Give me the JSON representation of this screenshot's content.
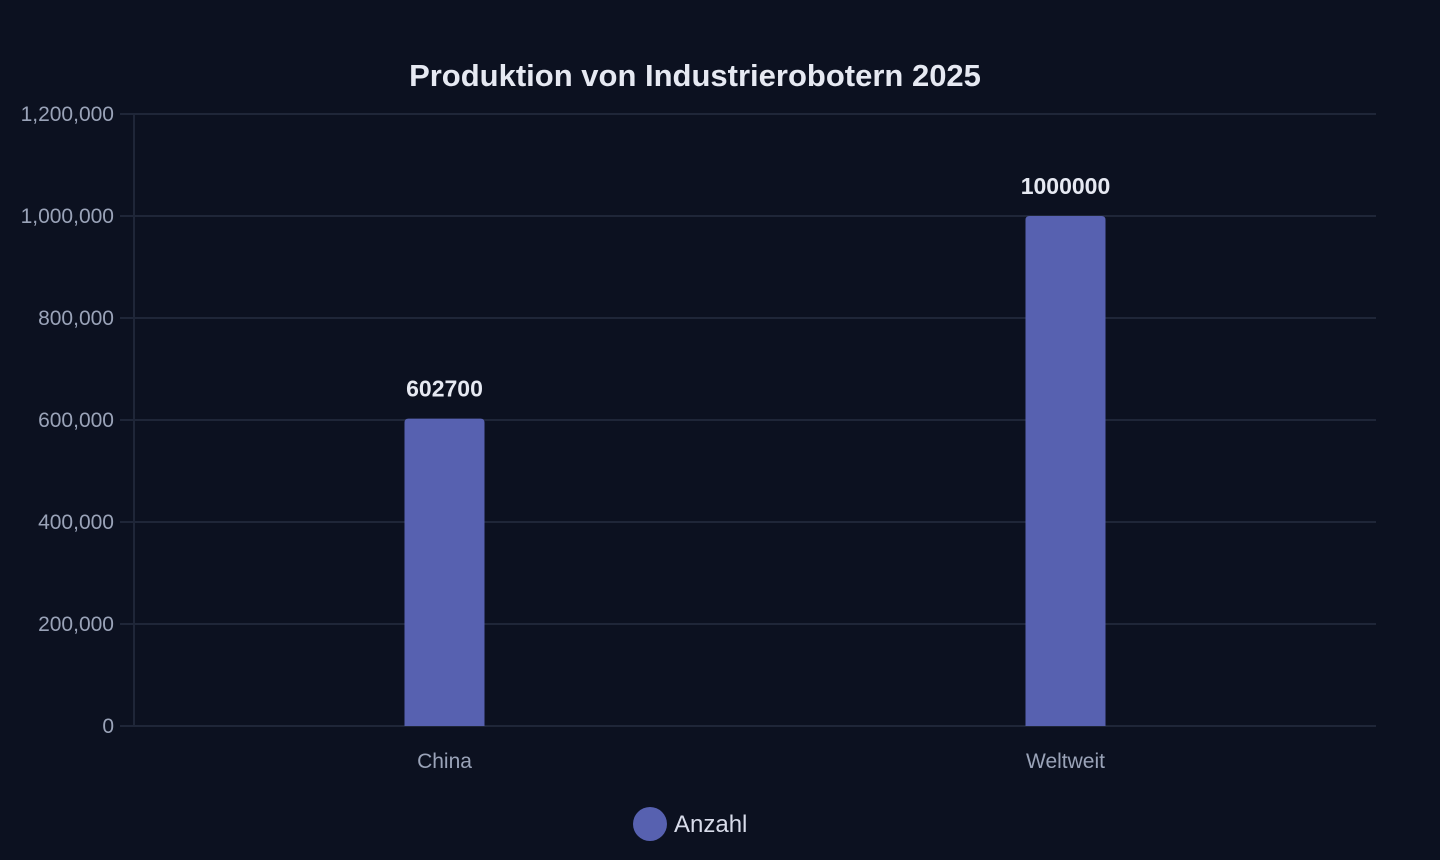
{
  "chart_data": {
    "type": "bar",
    "title": "Produktion von Industrierobotern 2025",
    "xlabel": "",
    "ylabel": "",
    "categories": [
      "China",
      "Weltweit"
    ],
    "series": [
      {
        "name": "Anzahl",
        "values": [
          602700,
          1000000
        ]
      }
    ],
    "data_labels": [
      "602700",
      "1000000"
    ],
    "ylim": [
      0,
      1200000
    ],
    "yticks": [
      0,
      200000,
      400000,
      600000,
      800000,
      1000000,
      1200000
    ],
    "ytick_labels": [
      "0",
      "200,000",
      "400,000",
      "600,000",
      "800,000",
      "1,000,000",
      "1,200,000"
    ],
    "grid": true,
    "legend_position": "bottom",
    "colors": {
      "background": "#0c1120",
      "bar": "#5761b0",
      "grid": "#1f2638",
      "text": "#e6e9f2",
      "muted_text": "#9aa3b8"
    }
  }
}
